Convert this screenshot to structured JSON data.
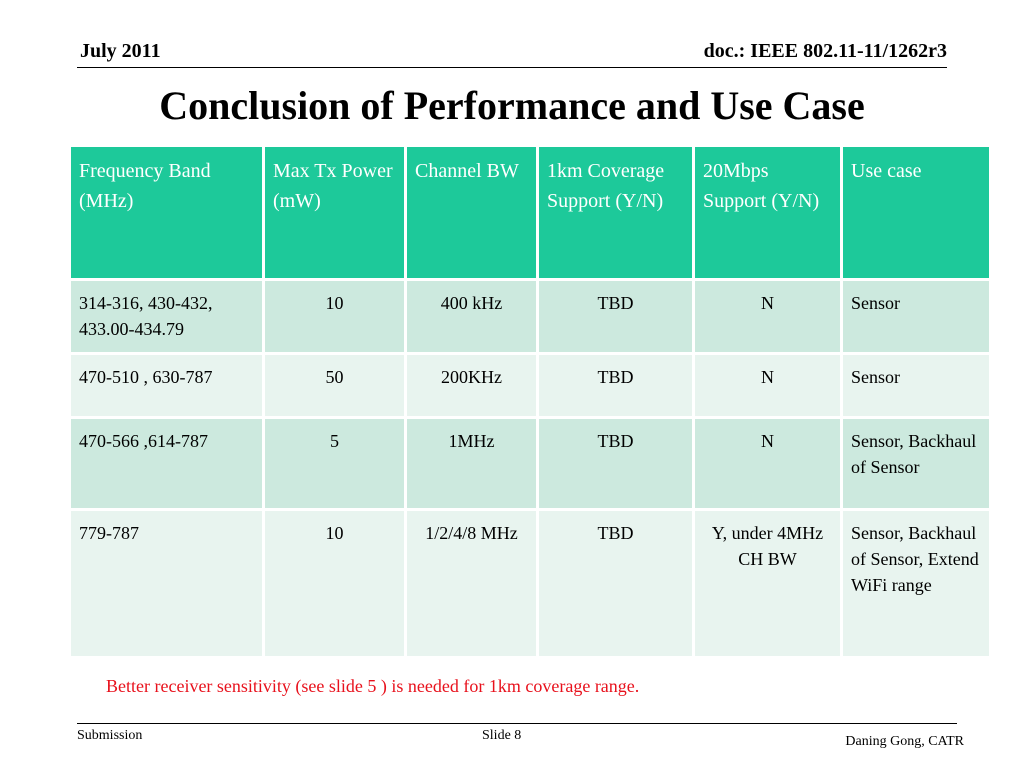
{
  "header": {
    "date": "July 2011",
    "doc_id": "doc.: IEEE 802.11-11/1262r3"
  },
  "title": "Conclusion of Performance and Use Case",
  "table": {
    "headers": [
      "Frequency Band (MHz)",
      "Max Tx Power (mW)",
      "Channel BW",
      "1km Coverage Support (Y/N)",
      "20Mbps Support (Y/N)",
      "Use case"
    ],
    "rows": [
      [
        "314-316, 430-432,  433.00-434.79",
        "10",
        "400 kHz",
        "TBD",
        "N",
        "Sensor"
      ],
      [
        "470-510 , 630-787",
        "50",
        "200KHz",
        "TBD",
        "N",
        "Sensor"
      ],
      [
        "470-566 ,614-787",
        "5",
        "1MHz",
        "TBD",
        "N",
        "Sensor, Backhaul of Sensor"
      ],
      [
        "779-787",
        "10",
        "1/2/4/8 MHz",
        "TBD",
        "Y,  under 4MHz  CH BW",
        "Sensor, Backhaul of Sensor, Extend WiFi range"
      ]
    ]
  },
  "note": "Better receiver sensitivity (see slide 5 ) is needed for 1km coverage range.",
  "footer": {
    "left": "Submission",
    "center": "Slide 8",
    "right": "Daning Gong, CATR"
  },
  "colors": {
    "header_bg": "#1dc99a",
    "row_odd": "#cce9de",
    "row_even": "#e8f4ef",
    "note_text": "#e8111c"
  }
}
